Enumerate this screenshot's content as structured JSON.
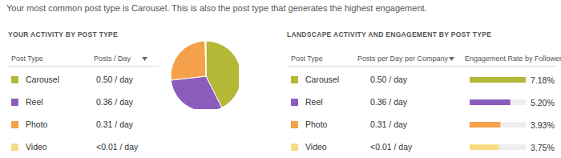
{
  "header": {
    "text": "Your most common post type is Carousel. This is also the post type that generates the highest engagement."
  },
  "chart_data": [
    {
      "type": "pie",
      "title": "YOUR ACTIVITY BY POST TYPE",
      "column_labels": [
        "Post Type",
        "Posts / Day"
      ],
      "categories": [
        "Carousel",
        "Reel",
        "Photo",
        "Video"
      ],
      "values": [
        0.5,
        0.36,
        0.31,
        0.005
      ],
      "value_labels": [
        "0.50 / day",
        "0.36 / day",
        "0.31 / day",
        "<0.01 / day"
      ],
      "colors": [
        "#b5b836",
        "#8c5cbd",
        "#f5a04a",
        "#f7db82"
      ]
    },
    {
      "type": "bar",
      "orientation": "horizontal",
      "title": "LANDSCAPE ACTIVITY AND ENGAGEMENT BY POST TYPE",
      "column_labels": [
        "Post Type",
        "Posts per Day per Company",
        "Engagement Rate by Follower"
      ],
      "categories": [
        "Carousel",
        "Reel",
        "Photo",
        "Video"
      ],
      "posts_per_day": [
        "0.50 / day",
        "0.36 / day",
        "0.31 / day",
        "<0.01 / day"
      ],
      "values": [
        7.18,
        5.2,
        3.93,
        3.75
      ],
      "value_labels": [
        "7.18%",
        "5.20%",
        "3.93%",
        "3.75%"
      ],
      "colors": [
        "#b5b836",
        "#8c5cbd",
        "#f5a04a",
        "#f7db82"
      ],
      "xlim": [
        0,
        7.18
      ],
      "data_labels": true,
      "tick_labels": false
    }
  ]
}
